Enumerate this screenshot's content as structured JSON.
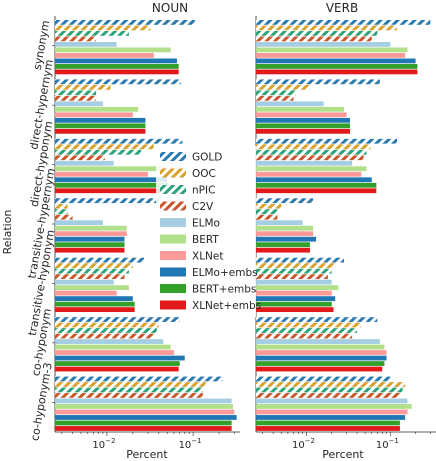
{
  "chart_data": {
    "type": "bar",
    "orientation": "horizontal",
    "ylabel": "Relation",
    "xlabel": "Percent",
    "xscale": "log",
    "xlim": [
      0.0025,
      0.35
    ],
    "x_ticks": [
      {
        "value": 0.01,
        "base": "10",
        "exp": "−2"
      },
      {
        "value": 0.1,
        "base": "10",
        "exp": "−1"
      }
    ],
    "grid": false,
    "legend_position": "center",
    "relations": [
      "synonym",
      "direct-hypernym",
      "direct-hyponym",
      "transitive-hypernym",
      "transitive-hyponym",
      "co-hyponym",
      "co-hyponym-3"
    ],
    "series": [
      {
        "name": "GOLD",
        "color": "#2a7ab0",
        "hatch": "diag"
      },
      {
        "name": "OOC",
        "color": "#d9a02a",
        "hatch": "diag"
      },
      {
        "name": "nPIC",
        "color": "#2aa37a",
        "hatch": "diag"
      },
      {
        "name": "C2V",
        "color": "#c8562a",
        "hatch": "diag"
      },
      {
        "name": "ELMo",
        "color": "#a6cee3",
        "hatch": "none"
      },
      {
        "name": "BERT",
        "color": "#b2df8a",
        "hatch": "none"
      },
      {
        "name": "XLNet",
        "color": "#fb9a99",
        "hatch": "none"
      },
      {
        "name": "ELMo+embs",
        "color": "#1f78b4",
        "hatch": "none"
      },
      {
        "name": "BERT+embs",
        "color": "#33a02c",
        "hatch": "none"
      },
      {
        "name": "XLNet+embs",
        "color": "#e31a1c",
        "hatch": "none"
      }
    ],
    "panels": [
      {
        "title": "NOUN",
        "values": [
          [
            0.105,
            0.032,
            0.018,
            0.0075,
            0.013,
            0.055,
            0.035,
            0.065,
            0.068,
            0.068
          ],
          [
            0.072,
            0.011,
            0.0075,
            0.0075,
            0.009,
            0.023,
            0.02,
            0.028,
            0.028,
            0.028
          ],
          [
            0.075,
            0.035,
            0.025,
            0.0095,
            0.012,
            0.048,
            0.03,
            0.05,
            0.052,
            0.052
          ],
          [
            0.04,
            0.0035,
            0.0035,
            0.004,
            0.009,
            0.017,
            0.017,
            0.016,
            0.016,
            0.016
          ],
          [
            0.027,
            0.02,
            0.018,
            0.016,
            0.012,
            0.018,
            0.013,
            0.02,
            0.021,
            0.021
          ],
          [
            0.07,
            0.04,
            0.038,
            0.035,
            0.045,
            0.055,
            0.06,
            0.08,
            0.07,
            0.068
          ],
          [
            0.22,
            0.14,
            0.13,
            0.13,
            0.28,
            0.29,
            0.3,
            0.32,
            0.28,
            0.28
          ]
        ]
      },
      {
        "title": "VERB",
        "values": [
          [
            0.3,
            0.12,
            0.07,
            0.06,
            0.1,
            0.16,
            0.15,
            0.2,
            0.21,
            0.21
          ],
          [
            0.075,
            0.011,
            0.0075,
            0.007,
            0.016,
            0.028,
            0.03,
            0.033,
            0.033,
            0.033
          ],
          [
            0.12,
            0.058,
            0.052,
            0.048,
            0.035,
            0.052,
            0.045,
            0.06,
            0.068,
            0.068
          ],
          [
            0.012,
            0.005,
            0.0045,
            0.0045,
            0.009,
            0.012,
            0.012,
            0.013,
            0.011,
            0.011
          ],
          [
            0.028,
            0.022,
            0.02,
            0.018,
            0.02,
            0.024,
            0.02,
            0.022,
            0.02,
            0.021
          ],
          [
            0.07,
            0.045,
            0.04,
            0.035,
            0.075,
            0.085,
            0.09,
            0.09,
            0.085,
            0.08
          ],
          [
            0.1,
            0.15,
            0.14,
            0.13,
            0.16,
            0.18,
            0.16,
            0.15,
            0.13,
            0.13
          ]
        ]
      }
    ]
  }
}
